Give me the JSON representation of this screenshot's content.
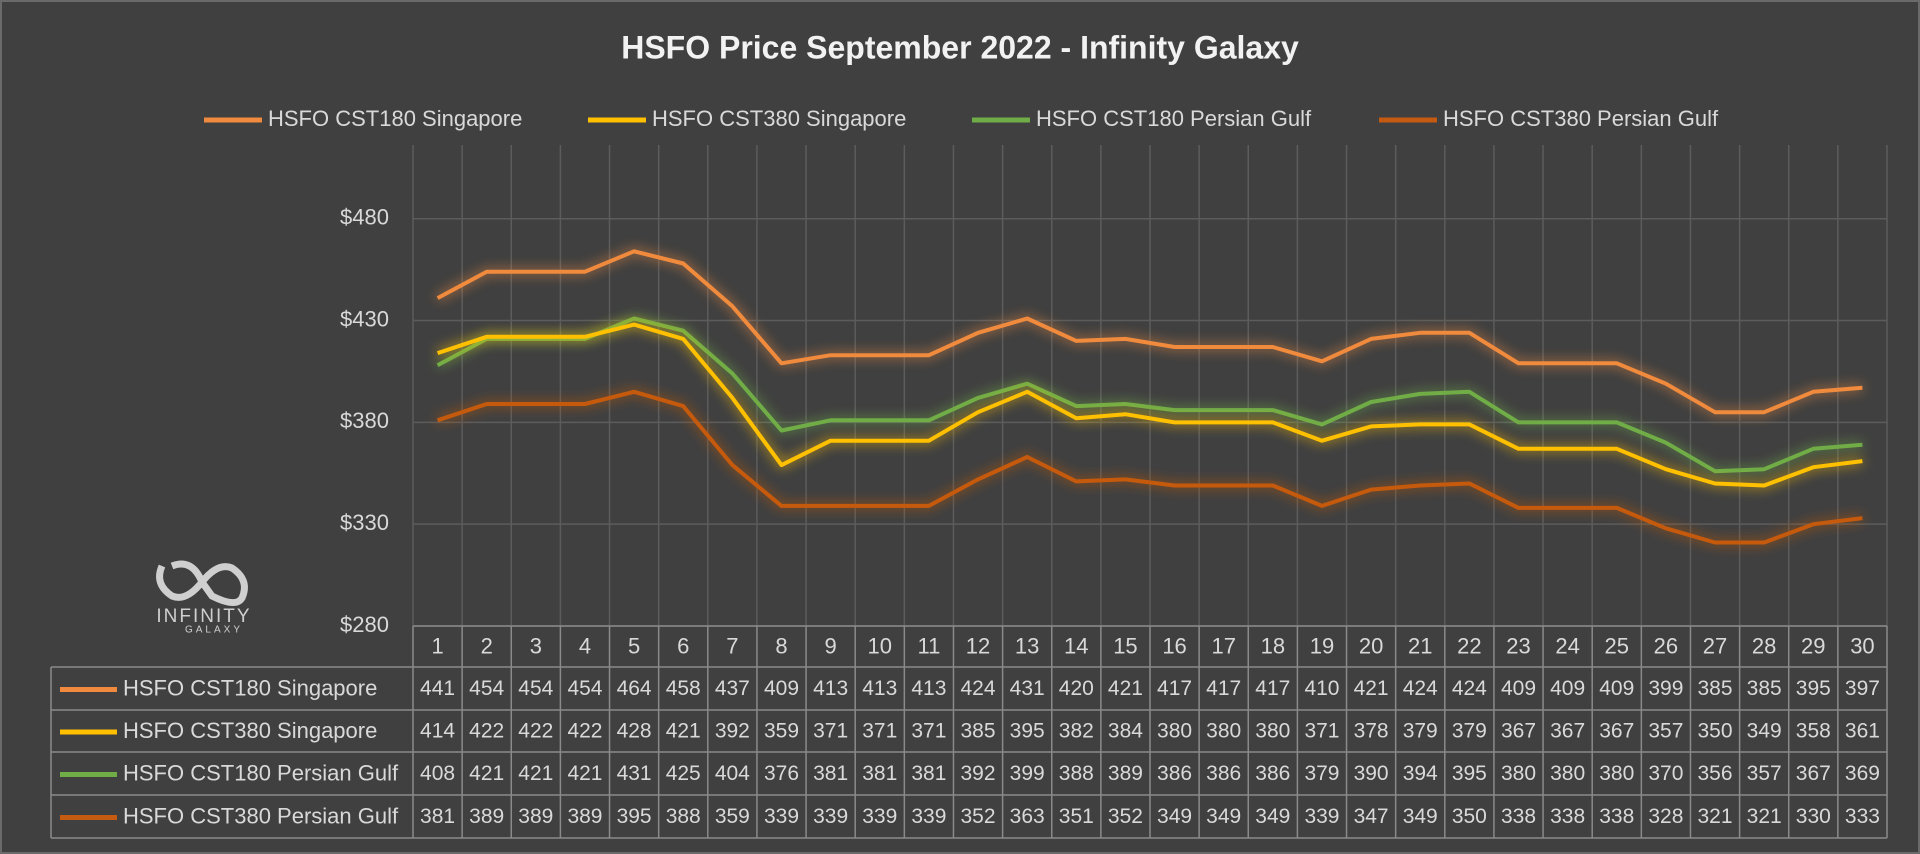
{
  "chart_data": {
    "type": "line",
    "title": "HSFO Price September 2022 - Infinity Galaxy",
    "categories": [
      1,
      2,
      3,
      4,
      5,
      6,
      7,
      8,
      9,
      10,
      11,
      12,
      13,
      14,
      15,
      16,
      17,
      18,
      19,
      20,
      21,
      22,
      23,
      24,
      25,
      26,
      27,
      28,
      29,
      30
    ],
    "series": [
      {
        "name": "HSFO CST180 Singapore",
        "color": "#f08a3e",
        "values": [
          441,
          454,
          454,
          454,
          464,
          458,
          437,
          409,
          413,
          413,
          413,
          424,
          431,
          420,
          421,
          417,
          417,
          417,
          410,
          421,
          424,
          424,
          409,
          409,
          409,
          399,
          385,
          385,
          395,
          397
        ]
      },
      {
        "name": "HSFO CST380 Singapore",
        "color": "#ffc000",
        "values": [
          414,
          422,
          422,
          422,
          428,
          421,
          392,
          359,
          371,
          371,
          371,
          385,
          395,
          382,
          384,
          380,
          380,
          380,
          371,
          378,
          379,
          379,
          367,
          367,
          367,
          357,
          350,
          349,
          358,
          361
        ]
      },
      {
        "name": "HSFO CST180 Persian Gulf",
        "color": "#70ad47",
        "values": [
          408,
          421,
          421,
          421,
          431,
          425,
          404,
          376,
          381,
          381,
          381,
          392,
          399,
          388,
          389,
          386,
          386,
          386,
          379,
          390,
          394,
          395,
          380,
          380,
          380,
          370,
          356,
          357,
          367,
          369
        ]
      },
      {
        "name": "HSFO CST380 Persian Gulf",
        "color": "#c55a11",
        "values": [
          381,
          389,
          389,
          389,
          395,
          388,
          359,
          339,
          339,
          339,
          339,
          352,
          363,
          351,
          352,
          349,
          349,
          349,
          339,
          347,
          349,
          350,
          338,
          338,
          338,
          328,
          321,
          321,
          330,
          333
        ]
      }
    ],
    "ylim": [
      280,
      500
    ],
    "yticks": [
      {
        "value": 280,
        "label": "$280"
      },
      {
        "value": 330,
        "label": "$330"
      },
      {
        "value": 380,
        "label": "$380"
      },
      {
        "value": 430,
        "label": "$430"
      },
      {
        "value": 480,
        "label": "$480"
      }
    ],
    "grid": true,
    "legend": "top",
    "data_table": true
  },
  "logo": {
    "text": "INFINITY",
    "subtext": "GALAXY"
  }
}
